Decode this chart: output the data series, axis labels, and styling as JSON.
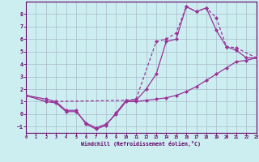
{
  "xlabel": "Windchill (Refroidissement éolien,°C)",
  "bg_color": "#cceef0",
  "line_color": "#993399",
  "grid_color": "#aabbcc",
  "axis_color": "#660066",
  "xlim": [
    0,
    23
  ],
  "ylim": [
    -1.5,
    9.0
  ],
  "xticks": [
    0,
    1,
    2,
    3,
    4,
    5,
    6,
    7,
    8,
    9,
    10,
    11,
    12,
    13,
    14,
    15,
    16,
    17,
    18,
    19,
    20,
    21,
    22,
    23
  ],
  "yticks": [
    -1,
    0,
    1,
    2,
    3,
    4,
    5,
    6,
    7,
    8
  ],
  "curve1_x": [
    0,
    2,
    3,
    4,
    5,
    6,
    7,
    8,
    9,
    10,
    11,
    12,
    13,
    14,
    15,
    16,
    17,
    18,
    19,
    20,
    21,
    22,
    23
  ],
  "curve1_y": [
    1.5,
    1.2,
    1.0,
    0.3,
    0.3,
    -0.8,
    -1.2,
    -0.9,
    0.1,
    1.1,
    1.1,
    2.0,
    3.2,
    5.8,
    6.0,
    8.6,
    8.2,
    8.5,
    6.7,
    5.4,
    5.1,
    4.5,
    4.5
  ],
  "curve2_x": [
    0,
    2,
    3,
    4,
    5,
    6,
    7,
    8,
    9,
    10,
    11,
    12,
    13,
    14,
    15,
    16,
    17,
    18,
    19,
    20,
    21,
    22,
    23
  ],
  "curve2_y": [
    1.5,
    1.0,
    0.9,
    0.2,
    0.2,
    -0.7,
    -1.1,
    -0.8,
    0.0,
    1.0,
    1.0,
    1.1,
    1.2,
    1.3,
    1.5,
    1.8,
    2.2,
    2.7,
    3.2,
    3.7,
    4.2,
    4.3,
    4.5
  ],
  "curve3_x": [
    0,
    2,
    10,
    11,
    13,
    14,
    15,
    16,
    17,
    18,
    19,
    20,
    21,
    23
  ],
  "curve3_y": [
    1.5,
    1.0,
    1.1,
    1.2,
    5.8,
    6.0,
    6.5,
    8.6,
    8.2,
    8.5,
    7.7,
    5.4,
    5.3,
    4.5
  ]
}
